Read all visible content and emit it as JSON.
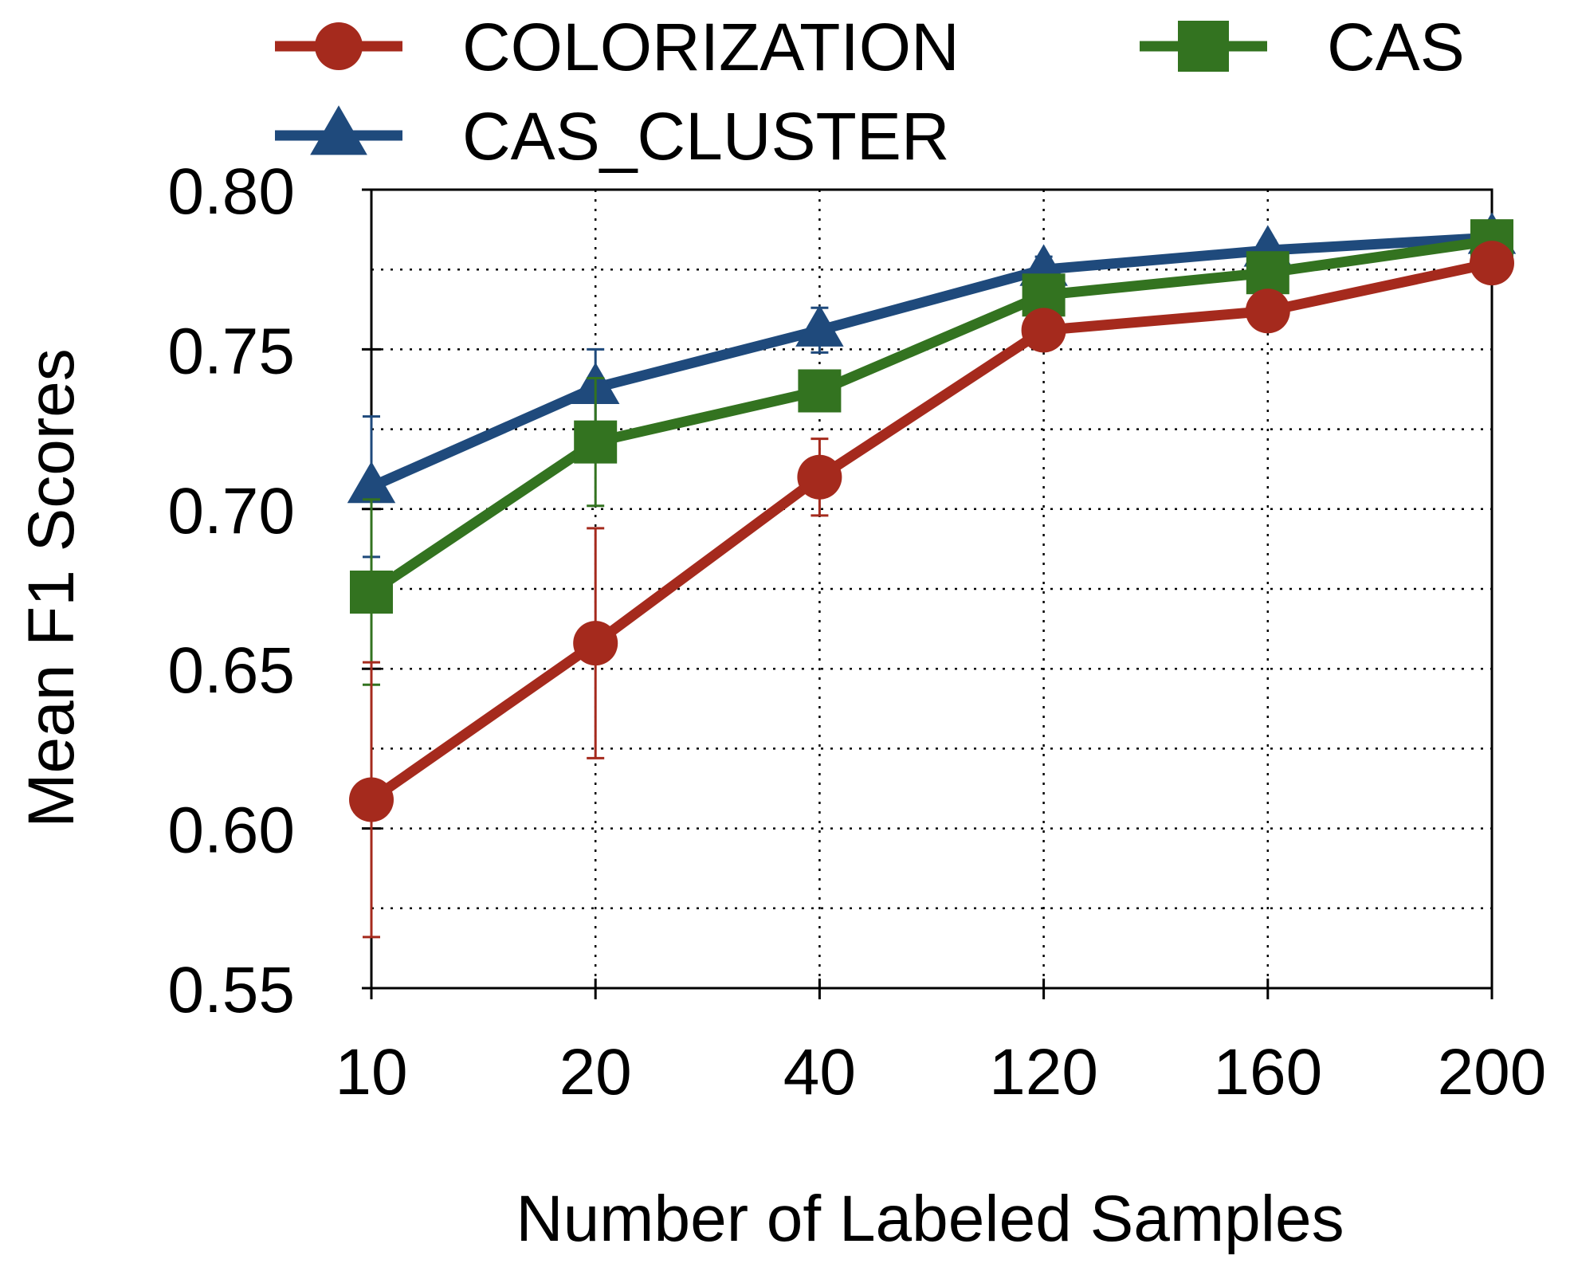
{
  "chart_data": {
    "type": "line",
    "categories": [
      "10",
      "20",
      "40",
      "120",
      "160",
      "200"
    ],
    "xlabel": "Number of Labeled Samples",
    "ylabel": "Mean F1 Scores",
    "ylim": [
      0.55,
      0.8
    ],
    "yticks": [
      "0.55",
      "0.60",
      "0.65",
      "0.70",
      "0.75",
      "0.80"
    ],
    "grid": true,
    "legend_placement": "top",
    "series": [
      {
        "name": "COLORIZATION",
        "color": "#a52a1d",
        "marker": "circle",
        "values": [
          0.609,
          0.658,
          0.71,
          0.756,
          0.762,
          0.777
        ],
        "err": [
          0.043,
          0.036,
          0.012,
          0.004,
          0.003,
          0.002
        ]
      },
      {
        "name": "CAS",
        "color": "#337320",
        "marker": "square",
        "values": [
          0.674,
          0.721,
          0.737,
          0.767,
          0.774,
          0.784
        ],
        "err": [
          0.029,
          0.02,
          0.005,
          0.004,
          0.003,
          0.002
        ]
      },
      {
        "name": "CAS_CLUSTER",
        "color": "#1f4a7c",
        "marker": "triangle",
        "values": [
          0.707,
          0.738,
          0.756,
          0.775,
          0.781,
          0.785
        ],
        "err": [
          0.022,
          0.012,
          0.007,
          0.004,
          0.003,
          0.002
        ]
      }
    ]
  }
}
